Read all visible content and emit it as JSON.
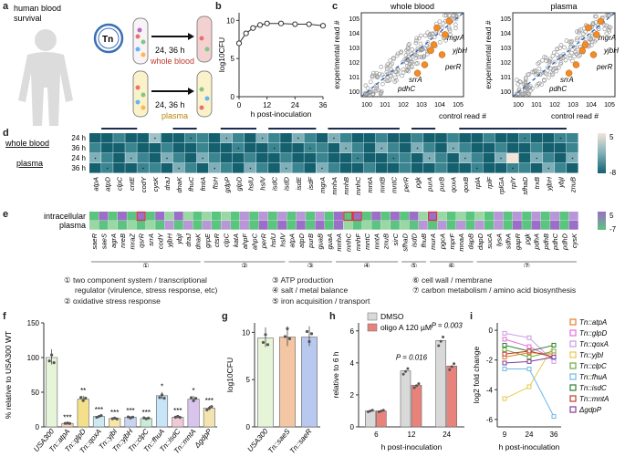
{
  "panels": {
    "a": "a",
    "b": "b",
    "c": "c",
    "d": "d",
    "e": "e",
    "f": "f",
    "g": "g",
    "h": "h",
    "i": "i"
  },
  "panel_a": {
    "title_line1": "human blood",
    "title_line2": "survival",
    "tn_label": "Tn",
    "time_label_top": "24, 36 h",
    "time_label_bottom": "24, 36 h",
    "whole_blood_label": "whole blood",
    "plasma_label": "plasma",
    "colors": {
      "whole_blood": "#c0392b",
      "plasma": "#b8860b",
      "silhouette": "#d9d9d9"
    }
  },
  "panel_b": {
    "ylabel": "log10CFU",
    "xlabel": "h post-inoculation"
  },
  "panel_c": {
    "left_title": "whole blood",
    "right_title": "plasma",
    "xlabel": "control read #",
    "ylabel": "experimental read #",
    "genes_left": [
      "mgrA",
      "yjbH",
      "perR",
      "srrA",
      "pdhC"
    ],
    "genes_right": [
      "mgrA",
      "yjbH",
      "perR",
      "srrA",
      "pdhC"
    ],
    "colors": {
      "points": "#9a9a9a",
      "highlight": "#f28c28",
      "diagonal": "#2f63b0"
    }
  },
  "panel_d": {
    "row_group_labels": [
      "whole blood",
      "plasma"
    ],
    "row_labels": [
      "24 h",
      "36 h",
      "24 h",
      "36 h"
    ],
    "genes": [
      "atpA",
      "atpD",
      "clpC",
      "cntE",
      "codY",
      "cysK",
      "draJ",
      "dnaK",
      "fhuC",
      "fmtA",
      "ftsH",
      "gdpP",
      "glpD",
      "hslU",
      "hslV",
      "isdC",
      "isdD",
      "isdE",
      "isdF",
      "mgrA",
      "mnhA",
      "mnhB",
      "mnhC",
      "mntA",
      "mntB",
      "mntC",
      "perR",
      "pgk",
      "purA",
      "purB",
      "qoxA",
      "qoxB",
      "rplA",
      "rplF",
      "rplGA",
      "rplY",
      "sfhaD",
      "trxB",
      "yjbH",
      "ybjI",
      "znuB"
    ],
    "scale_max_label": "5",
    "scale_min_label": "-8",
    "colors": {
      "high": "#f4e4d8",
      "mid": "#7fb0b9",
      "low": "#14606f"
    }
  },
  "panel_e": {
    "row_labels": [
      "intracellular",
      "plasma"
    ],
    "genes": [
      "saeR",
      "saeS",
      "agrA",
      "nreB",
      "mraZ",
      "qsrR",
      "srrA",
      "codY",
      "yjbH",
      "ybjI",
      "draJ",
      "dnaK",
      "grpE",
      "ctsR",
      "clpC",
      "katA",
      "ahpF",
      "ahpC",
      "perR",
      "hslU",
      "hslV",
      "atpA",
      "atpD",
      "purB",
      "guaB",
      "guaA",
      "mnhA",
      "mnhC",
      "mnhF",
      "mntC",
      "mntA",
      "znuB",
      "sirC",
      "sfhaD",
      "isdD",
      "fhuB",
      "murA",
      "pgcA",
      "mprF",
      "mnaA",
      "dapB",
      "dapD",
      "sucA",
      "lysA",
      "sdhA",
      "gapR",
      "pgk",
      "pdhA",
      "pdhB",
      "pdhC",
      "pdhD",
      "cysK"
    ],
    "scale_max_label": "5",
    "scale_min_label": "-7",
    "colors": {
      "high": "#9b6ec7",
      "low": "#5bc47e",
      "box": "#d33"
    }
  },
  "legend": {
    "items": [
      "① two component system / transcriptional regulator (virulence, stress response, etc)",
      "② oxidative stress response",
      "③ ATP production",
      "④ salt / metal balance",
      "⑤ iron acquisition / transport",
      "⑥ cell wall / membrane",
      "⑦ carbon metabolism / amino acid biosynthesis"
    ],
    "item1_line1": "① two component system / transcriptional",
    "item1_line2": "regulator (virulence, stress response, etc)",
    "item2": "② oxidative stress response",
    "item3": "③ ATP production",
    "item4": "④ salt / metal balance",
    "item5": "⑤ iron acquisition / transport",
    "item6": "⑥ cell wall / membrane",
    "item7": "⑦ carbon metabolism / amino acid biosynthesis",
    "bracket_marks": [
      "①",
      "②",
      "③",
      "④",
      "⑤",
      "⑥",
      "⑦"
    ]
  },
  "panel_f": {
    "ylabel": "% relative to USA300 WT",
    "strains": [
      "USA300",
      "Tn::atpA",
      "Tn::glpD",
      "Tn::qoxA",
      "Tn::yjbI",
      "Tn::yjbH",
      "Tn::clpC",
      "Tn::fhuA",
      "Tn::isdC",
      "Tn::mntA",
      "ΔgdpP"
    ],
    "sig": [
      "",
      "***",
      "**",
      "***",
      "***",
      "***",
      "***",
      "*",
      "***",
      "*",
      "***"
    ]
  },
  "panel_g": {
    "ylabel": "log10CFU",
    "strains": [
      "USA300",
      "Tn::saeS",
      "Tn::saeR"
    ]
  },
  "panel_h": {
    "ylabel": "relative to 6 h",
    "xlabel": "h post-inoculation",
    "legend": [
      "DMSO",
      "oligo A 120 µM"
    ],
    "pvalues": [
      "P = 0.016",
      "P = 0.003"
    ],
    "colors": {
      "dmso": "#d9d9d9",
      "oligo": "#e8837c"
    }
  },
  "panel_i": {
    "ylabel": "log2 fold change",
    "xlabel": "h post-inoculation",
    "legend": [
      "Tn::atpA",
      "Tn::glpD",
      "Tn::qoxA",
      "Tn::yjbI",
      "Tn::clpC",
      "Tn::fhuA",
      "Tn::isdC",
      "Tn::mntA",
      "ΔgdpP"
    ]
  },
  "chart_data": [
    {
      "id": "b",
      "type": "line",
      "x": [
        0,
        3,
        6,
        9,
        12,
        18,
        24,
        30,
        36
      ],
      "values": [
        7.0,
        8.3,
        9.0,
        9.4,
        9.6,
        9.6,
        9.5,
        9.5,
        9.3
      ],
      "xticks": [
        0,
        12,
        24,
        36
      ],
      "yticks": [
        0,
        5,
        10
      ],
      "xlim": [
        0,
        36
      ],
      "ylim": [
        0,
        11
      ],
      "xlabel": "h post-inoculation",
      "ylabel": "log10CFU"
    },
    {
      "id": "c",
      "type": "scatter",
      "xticks": [
        "10^0",
        "10^1",
        "10^2",
        "10^3",
        "10^4",
        "10^5"
      ],
      "yticks": [
        "10^0",
        "10^1",
        "10^2",
        "10^3",
        "10^4",
        "10^5"
      ],
      "xlabel": "control read #",
      "ylabel": "experimental read #"
    },
    {
      "id": "f",
      "type": "bar",
      "categories": [
        "USA300",
        "Tn::atpA",
        "Tn::glpD",
        "Tn::qoxA",
        "Tn::yjbI",
        "Tn::yjbH",
        "Tn::clpC",
        "Tn::fhuA",
        "Tn::isdC",
        "Tn::mntA",
        "ΔgdpP"
      ],
      "values": [
        100,
        5,
        40,
        15,
        12,
        14,
        12,
        45,
        14,
        40,
        27
      ],
      "yticks": [
        0,
        50,
        100,
        150
      ],
      "ylim": [
        0,
        150
      ],
      "ylabel": "% relative to USA300 WT",
      "colors": [
        "#e6f4d8",
        "#f5d0b9",
        "#f4df8a",
        "#cdeaf4",
        "#f8e6a8",
        "#c9d4f3",
        "#c8ecd8",
        "#c7e5f7",
        "#f0c8d6",
        "#d9c4ee",
        "#f2e3b1"
      ]
    },
    {
      "id": "g",
      "type": "bar",
      "categories": [
        "USA300",
        "Tn::saeS",
        "Tn::saeR"
      ],
      "values": [
        9.4,
        9.5,
        9.5
      ],
      "yticks": [
        0,
        5,
        10
      ],
      "ylim": [
        0,
        11
      ],
      "ylabel": "log10CFU",
      "colors": [
        "#e6f4d8",
        "#f3c6a4",
        "#b8c8ee"
      ]
    },
    {
      "id": "h",
      "type": "bar",
      "categories": [
        "6",
        "12",
        "24"
      ],
      "series": [
        {
          "name": "DMSO",
          "values": [
            1.0,
            3.5,
            5.4
          ]
        },
        {
          "name": "oligo A 120 µM",
          "values": [
            1.0,
            2.6,
            3.8
          ]
        }
      ],
      "yticks": [
        0,
        2,
        4,
        6
      ],
      "ylim": [
        0,
        6.5
      ],
      "xlabel": "h post-inoculation",
      "ylabel": "relative to 6 h"
    },
    {
      "id": "i",
      "type": "line",
      "x": [
        9,
        24,
        36
      ],
      "series": [
        {
          "name": "Tn::atpA",
          "values": [
            -1.8,
            -1.5,
            -1.6
          ],
          "color": "#e67e22"
        },
        {
          "name": "Tn::glpD",
          "values": [
            -0.6,
            -1.1,
            -1.9
          ],
          "color": "#e76ae0"
        },
        {
          "name": "Tn::qoxA",
          "values": [
            -0.2,
            -0.5,
            -2.1
          ],
          "color": "#c89be8"
        },
        {
          "name": "Tn::yjbI",
          "values": [
            -4.6,
            -3.8,
            -1.0
          ],
          "color": "#e8c84a"
        },
        {
          "name": "Tn::clpC",
          "values": [
            -1.3,
            -1.8,
            -1.4
          ],
          "color": "#6aaa3a"
        },
        {
          "name": "Tn::fhuA",
          "values": [
            -2.6,
            -2.6,
            -5.8
          ],
          "color": "#6fb7e8"
        },
        {
          "name": "Tn::isdC",
          "values": [
            -1.0,
            -1.4,
            -1.0
          ],
          "color": "#2e7d32"
        },
        {
          "name": "Tn::mntA",
          "values": [
            -1.6,
            -1.4,
            -1.8
          ],
          "color": "#c0392b"
        },
        {
          "name": "ΔgdpP",
          "values": [
            -2.2,
            -2.1,
            -1.8
          ],
          "color": "#7d3c98"
        }
      ],
      "xticks": [
        9,
        24,
        36
      ],
      "yticks": [
        0,
        -2,
        -4,
        -6
      ],
      "ylim": [
        -6.5,
        0.5
      ],
      "xlabel": "h post-inoculation",
      "ylabel": "log2 fold change"
    }
  ]
}
